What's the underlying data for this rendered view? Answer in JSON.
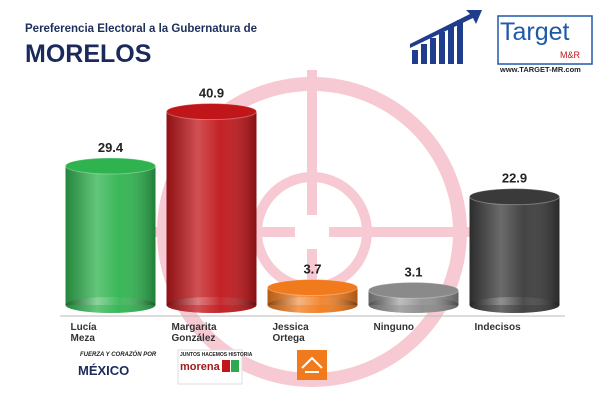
{
  "chart_data": {
    "type": "bar",
    "title": "Pereferencia Electoral a la Gubernatura de",
    "subtitle": "MORELOS",
    "categories": [
      "Lucía Meza",
      "Margarita González",
      "Jessica Ortega",
      "Ninguno",
      "Indecisos"
    ],
    "values": [
      29.4,
      40.9,
      3.7,
      3.1,
      22.9
    ],
    "colors": [
      "#2fb34f",
      "#c0161a",
      "#f07a1c",
      "#8a8a8a",
      "#3a3a3a"
    ]
  },
  "logo": {
    "name": "Target",
    "sub": "M&R",
    "url": "www.TARGET-MR.com"
  },
  "party_logos": [
    {
      "line1": "FUERZA Y CORAZÓN POR",
      "line2": "MÉXICO"
    },
    {
      "line1": "JUNTOS HACEMOS HISTORIA",
      "line2": "morena"
    }
  ]
}
